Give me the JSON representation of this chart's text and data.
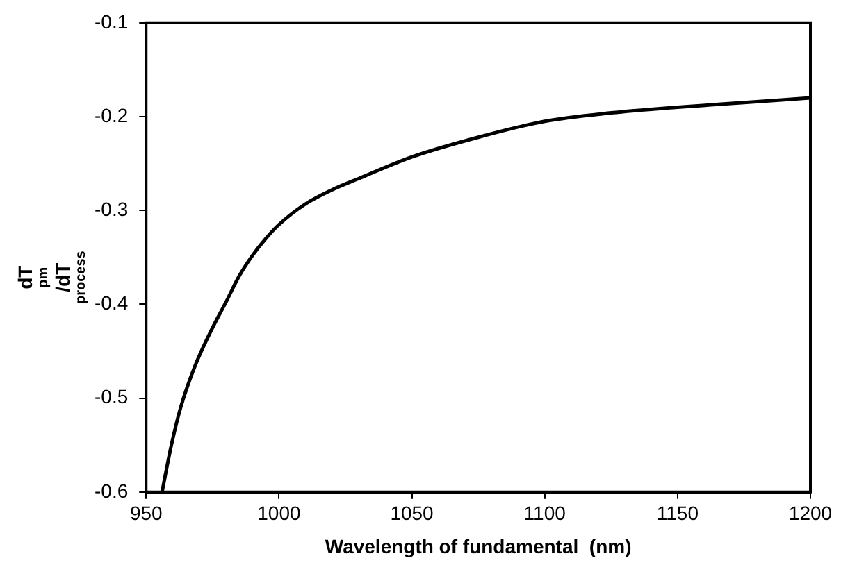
{
  "chart_data": {
    "type": "line",
    "xlabel": "Wavelength of fundamental  (nm)",
    "ylabel": "dT$_{pm}$/dT$_{process}$",
    "x": [
      956,
      959.5,
      963,
      968.5,
      975,
      980,
      985,
      990,
      995,
      1000,
      1010,
      1020,
      1030,
      1050,
      1075,
      1100,
      1125,
      1150,
      1175,
      1200
    ],
    "series": [
      {
        "color": "#000000",
        "values": [
          -0.6,
          -0.55,
          -0.51,
          -0.465,
          -0.425,
          -0.398,
          -0.37,
          -0.348,
          -0.33,
          -0.315,
          -0.293,
          -0.278,
          -0.266,
          -0.243,
          -0.222,
          -0.205,
          -0.196,
          -0.19,
          -0.185,
          -0.18
        ]
      }
    ],
    "xlim": [
      950,
      1200
    ],
    "xticks": [
      950,
      1000,
      1050,
      1100,
      1150,
      1200
    ],
    "ylim": [
      -0.6,
      -0.1
    ],
    "yticks": [
      -0.6,
      -0.5,
      -0.4,
      -0.3,
      -0.2,
      -0.1
    ],
    "grid": false,
    "legend": false,
    "marker": "none",
    "line_style": "solid"
  }
}
